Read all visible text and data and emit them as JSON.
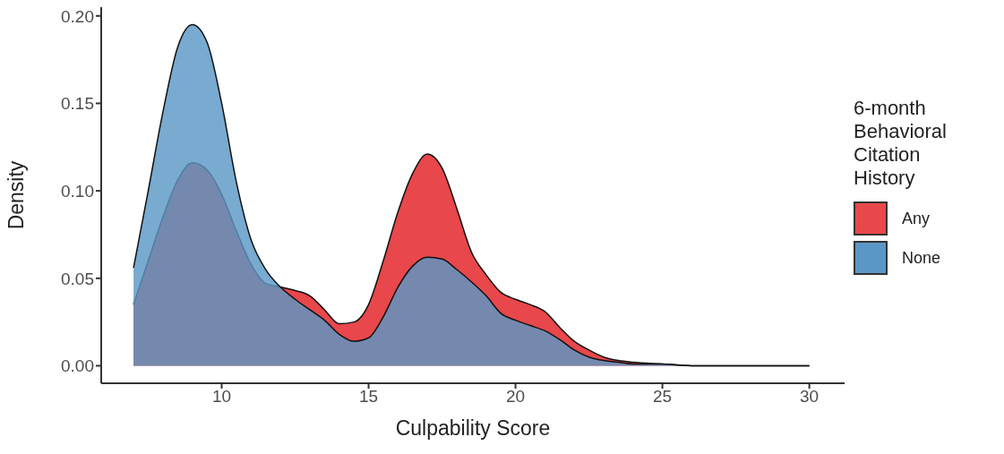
{
  "chart_data": {
    "type": "area",
    "xlabel": "Culpability Score",
    "ylabel": "Density",
    "legend_title": "6-month Behavioral Citation History",
    "legend": "right",
    "grid": false,
    "x": [
      7,
      7.5,
      8,
      8.5,
      9,
      9.5,
      10,
      10.5,
      11,
      11.5,
      12,
      12.5,
      13,
      13.5,
      14,
      14.5,
      15,
      15.5,
      16,
      16.5,
      17,
      17.5,
      18,
      18.5,
      19,
      19.5,
      20,
      20.5,
      21,
      21.5,
      22,
      22.5,
      23,
      23.5,
      24,
      25,
      26,
      27,
      28,
      29,
      30
    ],
    "xlim": [
      5.9,
      31.2
    ],
    "xticks": [
      10,
      15,
      20,
      25,
      30
    ],
    "ylim": [
      -0.01,
      0.205
    ],
    "yticks": [
      {
        "value": 0,
        "label": "0.00"
      },
      {
        "value": 0.05,
        "label": "0.05"
      },
      {
        "value": 0.1,
        "label": "0.10"
      },
      {
        "value": 0.15,
        "label": "0.15"
      },
      {
        "value": 0.2,
        "label": "0.20"
      }
    ],
    "series": [
      {
        "name": "Any",
        "color": "#e8474b",
        "values": [
          0.035,
          0.06,
          0.085,
          0.106,
          0.116,
          0.112,
          0.098,
          0.077,
          0.058,
          0.047,
          0.045,
          0.043,
          0.04,
          0.032,
          0.024,
          0.025,
          0.035,
          0.06,
          0.088,
          0.11,
          0.121,
          0.113,
          0.09,
          0.065,
          0.052,
          0.042,
          0.038,
          0.035,
          0.031,
          0.022,
          0.014,
          0.009,
          0.005,
          0.003,
          0.002,
          0.001,
          0,
          0,
          0,
          0,
          0
        ]
      },
      {
        "name": "None",
        "color": "#5b97c6",
        "values": [
          0.056,
          0.1,
          0.145,
          0.182,
          0.195,
          0.185,
          0.15,
          0.105,
          0.072,
          0.055,
          0.045,
          0.038,
          0.032,
          0.026,
          0.018,
          0.014,
          0.016,
          0.028,
          0.045,
          0.057,
          0.062,
          0.061,
          0.055,
          0.048,
          0.04,
          0.03,
          0.026,
          0.023,
          0.02,
          0.015,
          0.009,
          0.005,
          0.003,
          0.002,
          0.001,
          0.001,
          0,
          0,
          0,
          0,
          0
        ]
      }
    ]
  }
}
